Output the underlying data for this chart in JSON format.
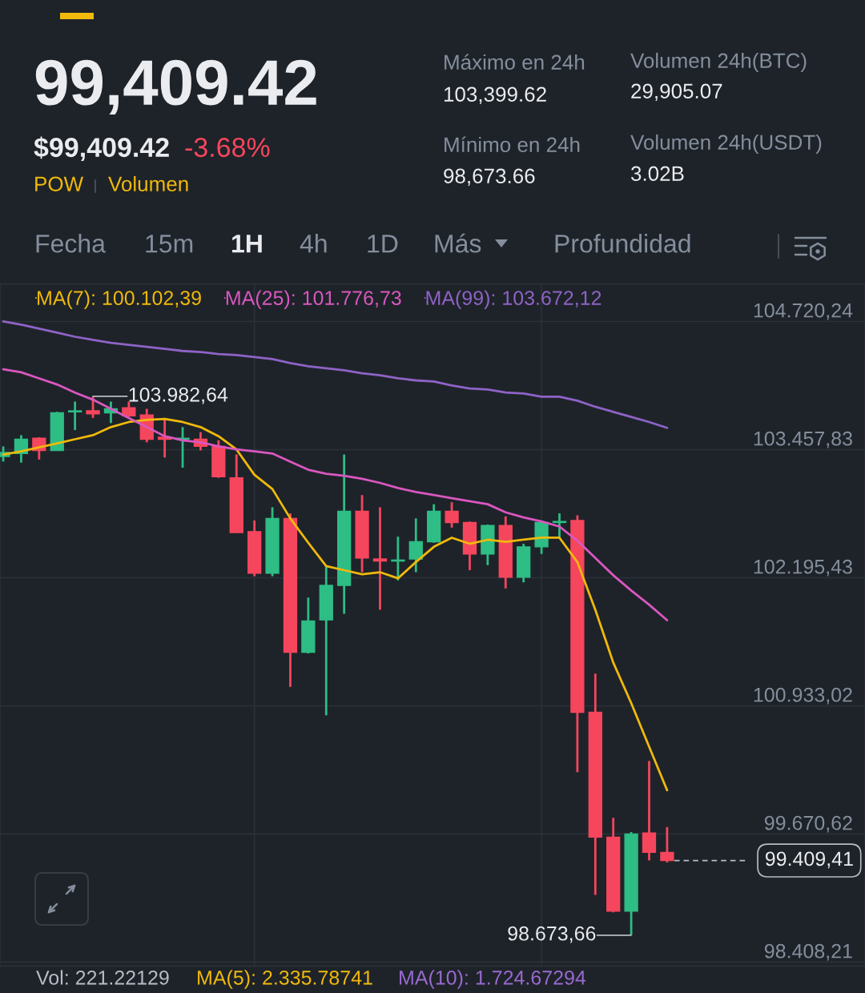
{
  "chart_data": {
    "type": "candlestick",
    "title": "99,409.42",
    "annotations": [
      "$99,409.42",
      "-3.68%",
      "POW",
      "Volumen",
      "Máximo en 24h",
      "103,399.62",
      "Mínimo en 24h",
      "98,673.66",
      "Volumen 24h(BTC)",
      "29,905.07",
      "Volumen 24h(USDT)",
      "3.02B",
      "Fecha",
      "15m",
      "1H",
      "4h",
      "1D",
      "Más",
      "Profundidad",
      "Vol: 221.22129",
      "MA(5): 2.335.78741",
      "MA(10): 1.724.67294",
      "103.982,64",
      "98.673,66"
    ],
    "categories": [
      null,
      null,
      null,
      null,
      null,
      null,
      null,
      null,
      null,
      null,
      null,
      null,
      null,
      null,
      null,
      null,
      null,
      null,
      null,
      null,
      null,
      null,
      null,
      null,
      null,
      null,
      null,
      null,
      null,
      null,
      null,
      null,
      null,
      null,
      null,
      null,
      null,
      null
    ],
    "ohlc": [
      [
        103390,
        103490,
        103340,
        103430
      ],
      [
        103420,
        103600,
        103330,
        103560
      ],
      [
        103570,
        103580,
        103360,
        103450
      ],
      [
        103450,
        103830,
        103450,
        103820
      ],
      [
        103830,
        103930,
        103650,
        103840
      ],
      [
        103840,
        103982.64,
        103770,
        103810
      ],
      [
        103820,
        103930,
        103720,
        103860
      ],
      [
        103870,
        103930,
        103780,
        103790
      ],
      [
        103800,
        103860,
        103530,
        103560
      ],
      [
        103580,
        103770,
        103380,
        103560
      ],
      [
        103560,
        103680,
        103280,
        103570
      ],
      [
        103560,
        103630,
        103450,
        103490
      ],
      [
        103490,
        103550,
        103180,
        103190
      ],
      [
        103180,
        103410,
        102640,
        102640
      ],
      [
        102650,
        102760,
        102210,
        102240
      ],
      [
        102240,
        102890,
        102210,
        102780
      ],
      [
        102780,
        102830,
        101120,
        101460
      ],
      [
        101460,
        102000,
        101450,
        101770
      ],
      [
        101780,
        102310,
        100840,
        102120
      ],
      [
        102120,
        103410,
        101840,
        102850
      ],
      [
        102850,
        103010,
        102250,
        102390
      ],
      [
        102380,
        102890,
        101880,
        102360
      ],
      [
        102360,
        102600,
        102170,
        102370
      ],
      [
        102380,
        102780,
        102250,
        102550
      ],
      [
        102550,
        102920,
        102540,
        102850
      ],
      [
        102850,
        102940,
        102690,
        102740
      ],
      [
        102740,
        102750,
        102270,
        102430
      ],
      [
        102430,
        102720,
        102320,
        102710
      ],
      [
        102710,
        102800,
        102090,
        102200
      ],
      [
        102200,
        102530,
        102150,
        102500
      ],
      [
        102500,
        102740,
        102430,
        102740
      ],
      [
        102740,
        102830,
        102590,
        102750
      ],
      [
        102760,
        102810,
        100280,
        100870
      ],
      [
        100870,
        101250,
        99070,
        99640
      ],
      [
        99640,
        99830,
        98900,
        98910
      ],
      [
        98910,
        99690,
        98673.66,
        99670
      ],
      [
        99680,
        100390,
        99410,
        99490
      ],
      [
        99490,
        99740,
        99390,
        99409.41
      ]
    ],
    "colors": [
      "#2ebd85",
      "#2ebd85",
      "#f6465d",
      "#2ebd85",
      "#2ebd85",
      "#f6465d",
      "#2ebd85",
      "#f6465d",
      "#f6465d",
      "#f6465d",
      "#2ebd85",
      "#f6465d",
      "#f6465d",
      "#f6465d",
      "#f6465d",
      "#2ebd85",
      "#f6465d",
      "#2ebd85",
      "#2ebd85",
      "#2ebd85",
      "#f6465d",
      "#f6465d",
      "#2ebd85",
      "#2ebd85",
      "#2ebd85",
      "#f6465d",
      "#f6465d",
      "#2ebd85",
      "#f6465d",
      "#2ebd85",
      "#2ebd85",
      "#2ebd85",
      "#f6465d",
      "#f6465d",
      "#f6465d",
      "#2ebd85",
      "#f6465d",
      "#f6465d"
    ],
    "series": [
      {
        "type": "line",
        "name": "MA(7): 100.102,39",
        "color": "#f0b90b",
        "values": [
          103410,
          103440,
          103480,
          103520,
          103560,
          103600,
          103680,
          103730,
          103750,
          103760,
          103730,
          103680,
          103590,
          103460,
          103210,
          103070,
          102780,
          102540,
          102310,
          102270,
          102230,
          102250,
          102190,
          102350,
          102500,
          102590,
          102530,
          102570,
          102550,
          102570,
          102590,
          102590,
          102350,
          101880,
          101360,
          100960,
          100530,
          100102.39
        ]
      },
      {
        "type": "line",
        "name": "MA(25): 101.776,73",
        "color": "#d957c0",
        "values": [
          104250,
          104220,
          104160,
          104100,
          104020,
          103950,
          103860,
          103770,
          103680,
          103590,
          103550,
          103530,
          103490,
          103460,
          103440,
          103420,
          103340,
          103260,
          103220,
          103200,
          103170,
          103130,
          103080,
          103040,
          103010,
          102980,
          102950,
          102920,
          102840,
          102790,
          102750,
          102700,
          102560,
          102390,
          102220,
          102070,
          101930,
          101776.73
        ]
      },
      {
        "type": "line",
        "name": "MA(99): 103.672,12",
        "color": "#8e63c7",
        "values": [
          104720,
          104690,
          104650,
          104610,
          104570,
          104540,
          104510,
          104490,
          104470,
          104450,
          104430,
          104420,
          104400,
          104390,
          104370,
          104350,
          104310,
          104280,
          104260,
          104240,
          104210,
          104190,
          104160,
          104140,
          104130,
          104090,
          104060,
          104050,
          104020,
          104010,
          103980,
          103980,
          103940,
          103880,
          103830,
          103780,
          103730,
          103672.12
        ]
      }
    ],
    "ylim": [
      98370,
      105090
    ],
    "yticks": [
      {
        "value": 98408.21,
        "label": "98.408,21"
      },
      {
        "value": 99670.62,
        "label": "99.670,62"
      },
      {
        "value": 100933.02,
        "label": "100.933,02"
      },
      {
        "value": 102195.43,
        "label": "102.195,43"
      },
      {
        "value": 103457.83,
        "label": "103.457,83"
      },
      {
        "value": 104720.24,
        "label": "104.720,24"
      }
    ],
    "ref_lines": [
      {
        "axis": "y",
        "value": 99409.41,
        "label": "99.409,41",
        "line_style": "dashed",
        "color": "#b7bdc6"
      }
    ],
    "grid": "y",
    "legend": "top left",
    "tick_labels": "y"
  }
}
